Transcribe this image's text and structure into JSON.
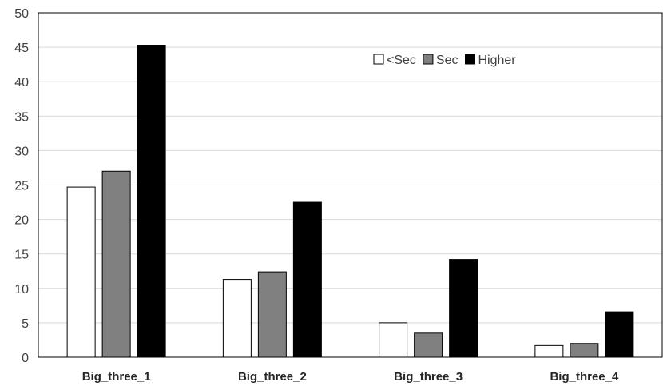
{
  "chart_data": {
    "type": "bar",
    "categories": [
      "Big_three_1",
      "Big_three_2",
      "Big_three_3",
      "Big_three_4"
    ],
    "series": [
      {
        "name": "<Sec",
        "values": [
          24.7,
          11.3,
          5.0,
          1.7
        ],
        "color": "#ffffff"
      },
      {
        "name": "Sec",
        "values": [
          27.0,
          12.4,
          3.5,
          2.0
        ],
        "color": "#808080"
      },
      {
        "name": "Higher",
        "values": [
          45.3,
          22.5,
          14.2,
          6.6
        ],
        "color": "#000000"
      }
    ],
    "ylim": [
      0,
      50
    ],
    "yticks": [
      0,
      5,
      10,
      15,
      20,
      25,
      30,
      35,
      40,
      45,
      50
    ],
    "grid": true,
    "legend_position": "top-right",
    "title": "",
    "xlabel": "",
    "ylabel": ""
  }
}
